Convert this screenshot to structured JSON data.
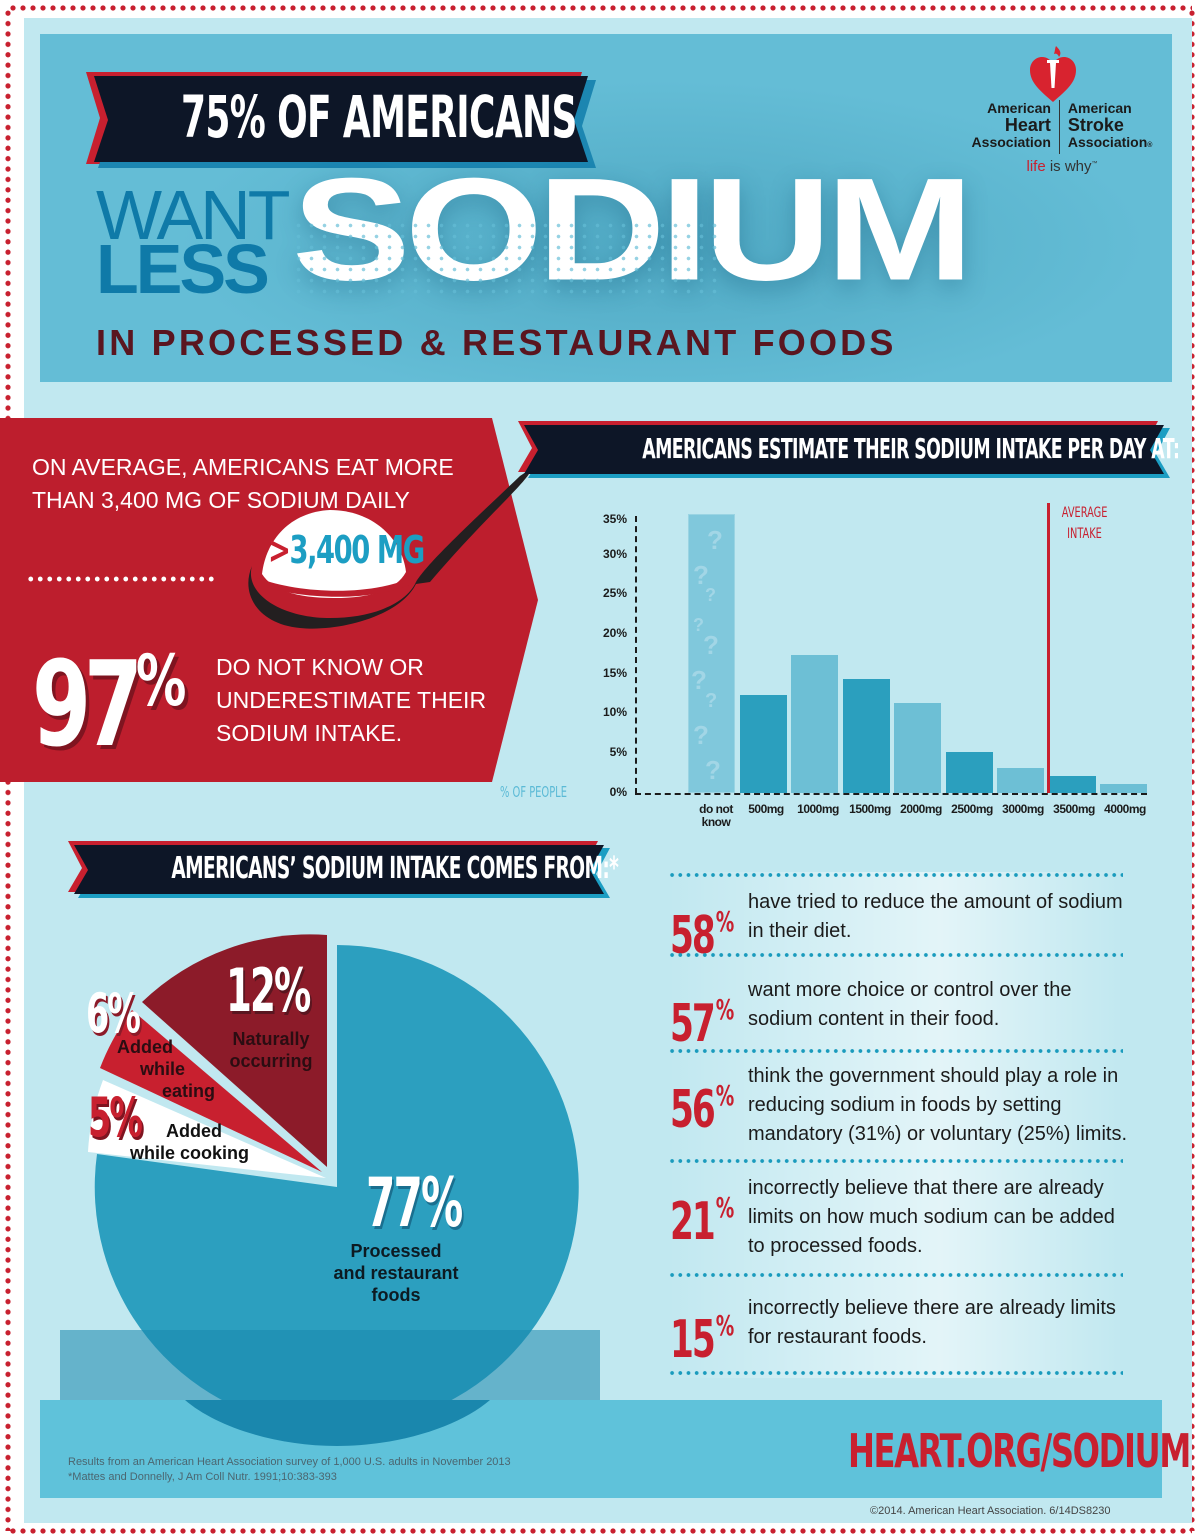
{
  "header": {
    "banner": "75% OF AMERICANS",
    "want": "WANT",
    "less": "LESS",
    "sodium": "SODIUM",
    "subhead": "IN PROCESSED & RESTAURANT FOODS"
  },
  "logo": {
    "left_line1": "American",
    "left_line2": "Heart",
    "left_line3": "Association",
    "right_line1": "American",
    "right_line2": "Stroke",
    "right_line3": "Association",
    "registered": "®",
    "tagline_red": "life",
    "tagline_rest": " is why",
    "tm": "™"
  },
  "intake_panel": {
    "text1": "ON AVERAGE, AMERICANS EAT MORE THAN 3,400 MG OF SODIUM DAILY",
    "spoon_gt": ">",
    "spoon_value": "3,400 MG",
    "big_number": "97",
    "big_suffix": "%",
    "text2": "DO NOT KNOW OR UNDERESTIMATE THEIR SODIUM INTAKE."
  },
  "estimate_banner": "AMERICANS  ESTIMATE THEIR SODIUM INTAKE PER DAY AT:",
  "chart_data": [
    {
      "type": "bar",
      "title": "AMERICANS ESTIMATE THEIR SODIUM INTAKE PER DAY AT:",
      "categories": [
        "do not know",
        "500mg",
        "1000mg",
        "1500mg",
        "2000mg",
        "2500mg",
        "3000mg",
        "3500mg",
        "4000mg"
      ],
      "values": [
        35.5,
        12.5,
        17.5,
        14.5,
        11.5,
        5.2,
        3.2,
        2.2,
        1.2
      ],
      "xlabel": "",
      "ylabel": "% OF PEOPLE",
      "ylim": [
        0,
        35
      ],
      "yticks": [
        "0%",
        "5%",
        "10%",
        "15%",
        "20%",
        "25%",
        "30%",
        "35%"
      ],
      "grid": false,
      "annotations": [
        {
          "text": "AVERAGE INTAKE",
          "type": "vertical-line",
          "position_between": [
            "3000mg",
            "3500mg"
          ],
          "color": "#c8202f"
        }
      ],
      "colors": {
        "dark": "#2b9fbe",
        "light": "#6dbfd5",
        "unknown": "#80c8dc"
      }
    },
    {
      "type": "pie",
      "title": "AMERICANS' SODIUM INTAKE COMES FROM:*",
      "categories": [
        "Processed and restaurant foods",
        "Naturally occurring",
        "Added while eating",
        "Added while cooking"
      ],
      "values": [
        77,
        12,
        6,
        5
      ],
      "colors": [
        "#2c9fbf",
        "#8c1b29",
        "#c8202f",
        "#ffffff"
      ],
      "legend": "inline labels"
    }
  ],
  "chart_labels": {
    "ylabel": "% OF PEOPLE",
    "avg_line1": "AVERAGE",
    "avg_line2": "INTAKE",
    "do_not_know_line1": "do not",
    "do_not_know_line2": "know"
  },
  "pie_banner": "AMERICANS’ SODIUM INTAKE COMES FROM:*",
  "pie_labels": {
    "processed_pct": "77%",
    "processed_label": [
      "Processed",
      "and restaurant",
      "foods"
    ],
    "natural_pct": "12%",
    "natural_label": [
      "Naturally",
      "occurring"
    ],
    "eating_pct": "6%",
    "eating_label": [
      "Added",
      "while",
      "eating"
    ],
    "cooking_pct": "5%",
    "cooking_label": [
      "Added",
      "while cooking"
    ]
  },
  "stats": [
    {
      "pct": "58",
      "text": "have tried to reduce the amount of sodium in their diet."
    },
    {
      "pct": "57",
      "text": "want more choice or control over the sodium content in their food."
    },
    {
      "pct": "56",
      "text": "think the government should play a role in reducing sodium in foods by setting mandatory (31%) or voluntary (25%) limits."
    },
    {
      "pct": "21",
      "text": "incorrectly believe that there are already limits on how much sodium can be added to processed foods."
    },
    {
      "pct": "15",
      "text": "incorrectly believe there are already limits for restaurant foods."
    }
  ],
  "footer": {
    "source1": "Results from an American Heart Association survey of 1,000 U.S. adults in November 2013",
    "source2": "*Mattes and Donnelly, J Am Coll Nutr. 1991;10:383-393",
    "url": "HEART.ORG/SODIUM",
    "copyright": "©2014. American Heart Association. 6/14DS8230"
  },
  "colors": {
    "brand_red": "#c8202f",
    "dark_red": "#8c1b29",
    "navy": "#0d1627",
    "hero_blue": "#64bdd6",
    "page_bg": "#c1e8f0",
    "bar_dark": "#2b9fbe",
    "bar_light": "#6dbfd5",
    "maroon_text": "#5a1620"
  }
}
